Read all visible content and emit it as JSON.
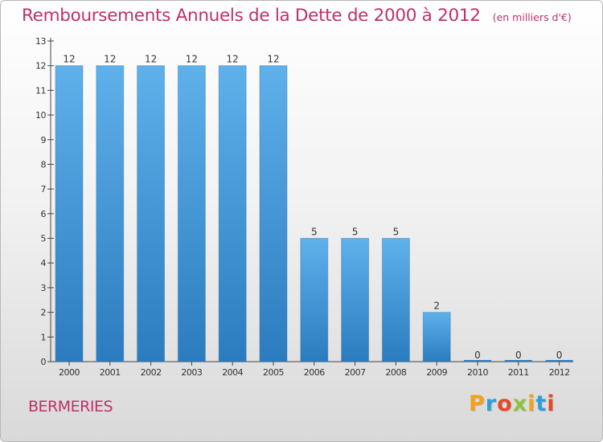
{
  "header": {
    "title": "Remboursements Annuels de la Dette de 2000 à 2012",
    "subtitle": "(en milliers d'€)"
  },
  "footer": {
    "commune": "BERMERIES",
    "brand": "Proxiti"
  },
  "colors": {
    "title": "#c0306a",
    "bar_top": "#5eb1ea",
    "bar_bottom": "#2a7cbf",
    "brand_letters": [
      "#f0a21b",
      "#2e9fd8",
      "#e24a2b",
      "#8bc33f",
      "#f0a21b",
      "#2e9fd8",
      "#e24a2b"
    ]
  },
  "chart_data": {
    "type": "bar",
    "categories": [
      "2000",
      "2001",
      "2002",
      "2003",
      "2004",
      "2005",
      "2006",
      "2007",
      "2008",
      "2009",
      "2010",
      "2011",
      "2012"
    ],
    "values": [
      12,
      12,
      12,
      12,
      12,
      12,
      5,
      5,
      5,
      2,
      0,
      0,
      0
    ],
    "data_labels": [
      "12",
      "12",
      "12",
      "12",
      "12",
      "12",
      "5",
      "5",
      "5",
      "2",
      "0",
      "0",
      "0"
    ],
    "yticks": [
      "0",
      "1",
      "2",
      "3",
      "4",
      "5",
      "6",
      "7",
      "8",
      "9",
      "10",
      "11",
      "12",
      "13"
    ],
    "ylim": [
      0,
      13
    ],
    "grid": false,
    "legend": "none",
    "title": "Remboursements Annuels de la Dette de 2000 à 2012",
    "xlabel": "",
    "ylabel": ""
  }
}
